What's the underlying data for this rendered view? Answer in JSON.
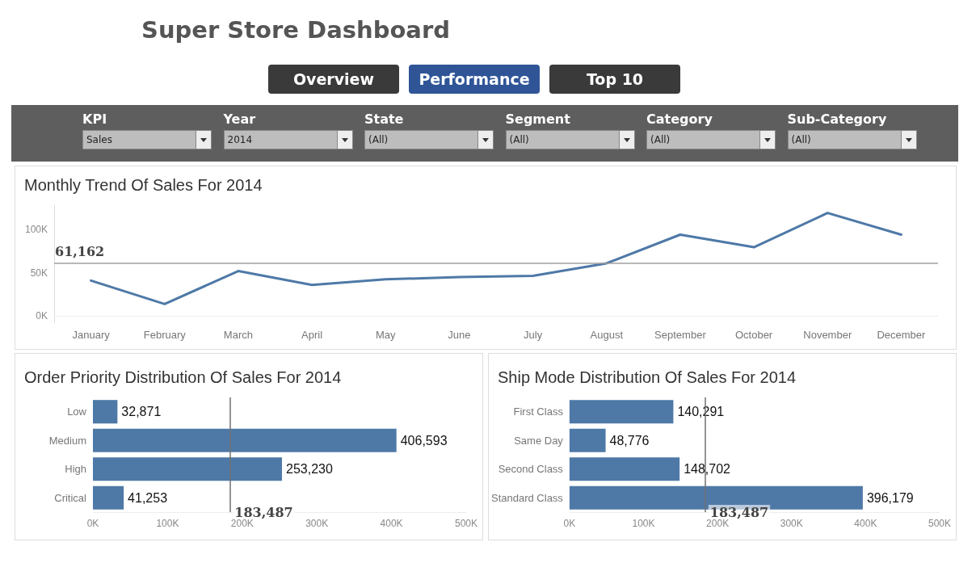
{
  "chart_data": [
    {
      "type": "other",
      "title": "Super Store Dashboard",
      "annotations": [
        "Overview",
        "Performance",
        "Top 10"
      ]
    },
    {
      "type": "other",
      "annotations": [
        "KPI",
        "Sales",
        "Year",
        "2014",
        "State",
        "(All)",
        "Segment",
        "(All)",
        "Category",
        "(All)",
        "Sub-Category",
        "(All)"
      ]
    },
    {
      "type": "line",
      "title": "Monthly Trend Of Sales For 2014",
      "categories": [
        "January",
        "February",
        "March",
        "April",
        "May",
        "June",
        "July",
        "August",
        "September",
        "October",
        "November",
        "December"
      ],
      "series": [
        {
          "color": "#4e79a7",
          "values": [
            41000,
            14000,
            52000,
            36000,
            42500,
            45000,
            46400,
            61000,
            94000,
            79500,
            119000,
            94000
          ]
        }
      ],
      "ylim": [
        -8000,
        128000
      ],
      "yticks": [
        {
          "value": 0,
          "label": "0K"
        },
        {
          "value": 50000,
          "label": "50K"
        },
        {
          "value": 100000,
          "label": "100K"
        }
      ],
      "ref_lines": [
        {
          "axis": "y",
          "value": 61162,
          "label": "61,162",
          "color": "#a0a0a0"
        }
      ],
      "grid": false,
      "marker": "none",
      "line_style": "solid"
    },
    {
      "type": "bar",
      "title": "Order Priority Distribution Of Sales For 2014",
      "orientation": "horizontal",
      "categories": [
        "Low",
        "Medium",
        "High",
        "Critical"
      ],
      "series": [
        {
          "color": "#4e79a7",
          "values": [
            32871,
            406593,
            253230,
            41253
          ],
          "value_labels": [
            "32,871",
            "406,593",
            "253,230",
            "41,253"
          ]
        }
      ],
      "xlim": [
        0,
        500000
      ],
      "xticks": [
        {
          "value": 0,
          "label": "0K"
        },
        {
          "value": 100000,
          "label": "100K"
        },
        {
          "value": 200000,
          "label": "200K"
        },
        {
          "value": 300000,
          "label": "300K"
        },
        {
          "value": 400000,
          "label": "400K"
        },
        {
          "value": 500000,
          "label": "500K"
        }
      ],
      "ref_lines": [
        {
          "axis": "x",
          "value": 183487,
          "label": "183,487",
          "color": "#707070"
        }
      ],
      "grid": false
    },
    {
      "type": "bar",
      "title": "Ship Mode Distribution Of Sales For 2014",
      "orientation": "horizontal",
      "categories": [
        "First Class",
        "Same Day",
        "Second Class",
        "Standard Class"
      ],
      "series": [
        {
          "color": "#4e79a7",
          "values": [
            140291,
            48776,
            148702,
            396179
          ],
          "value_labels": [
            "140,291",
            "48,776",
            "148,702",
            "396,179"
          ]
        }
      ],
      "xlim": [
        0,
        500000
      ],
      "xticks": [
        {
          "value": 0,
          "label": "0K"
        },
        {
          "value": 100000,
          "label": "100K"
        },
        {
          "value": 200000,
          "label": "200K"
        },
        {
          "value": 300000,
          "label": "300K"
        },
        {
          "value": 400000,
          "label": "400K"
        },
        {
          "value": 500000,
          "label": "500K"
        }
      ],
      "ref_lines": [
        {
          "axis": "x",
          "value": 183487,
          "label": "183,487",
          "color": "#707070"
        }
      ],
      "grid": false
    }
  ]
}
